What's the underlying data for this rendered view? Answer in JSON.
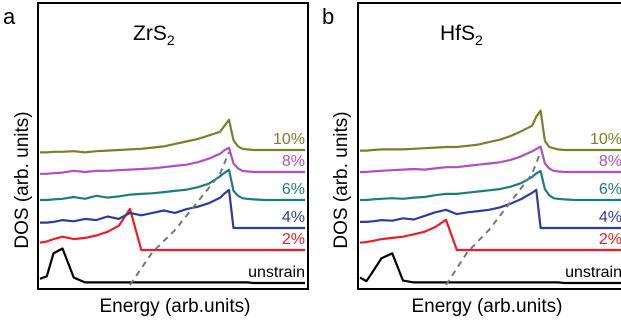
{
  "colors": {
    "unstrain": "#000000",
    "2%": "#ee1c25",
    "4%": "#2e3c9e",
    "6%": "#1a7f7a",
    "8%": "#b04fbf",
    "10%": "#7a7f2a",
    "guide": "#777777"
  },
  "chart_data": [
    {
      "panel": "a",
      "title_base": "ZrS",
      "title_sub": "2",
      "type": "line",
      "xlabel": "Energy (arb.units)",
      "ylabel": "DOS (arb. units)",
      "x": [
        0,
        0.03,
        0.06,
        0.1,
        0.15,
        0.2,
        0.25,
        0.3,
        0.35,
        0.4,
        0.45,
        0.5,
        0.55,
        0.6,
        0.65,
        0.7,
        0.75,
        0.8,
        0.82,
        0.84,
        0.86,
        0.88,
        0.9,
        0.92,
        0.95,
        1.0
      ],
      "series": [
        {
          "name": "unstrain",
          "color_key": "unstrain",
          "values": [
            0.08,
            0.12,
            0.5,
            0.58,
            0.1,
            0.02,
            0.02,
            0.02,
            0.02,
            0.02,
            0.02,
            0.02,
            0.02,
            0.02,
            0.02,
            0.02,
            0.02,
            0.02,
            0.02,
            0.02,
            0.02,
            0.02,
            0.02,
            0.02,
            0.01,
            0.01
          ]
        },
        {
          "name": "2%",
          "color_key": "2%",
          "values": [
            0.22,
            0.24,
            0.28,
            0.32,
            0.28,
            0.3,
            0.34,
            0.4,
            0.5,
            0.78,
            0.1,
            0.1,
            0.1,
            0.1,
            0.1,
            0.1,
            0.1,
            0.1,
            0.1,
            0.1,
            0.1,
            0.1,
            0.1,
            0.1,
            0.1,
            0.1
          ]
        },
        {
          "name": "4%",
          "color_key": "4%",
          "values": [
            0.34,
            0.34,
            0.35,
            0.38,
            0.36,
            0.4,
            0.38,
            0.44,
            0.4,
            0.5,
            0.46,
            0.5,
            0.54,
            0.5,
            0.56,
            0.6,
            0.66,
            0.75,
            0.82,
            0.88,
            0.25,
            0.25,
            0.25,
            0.25,
            0.25,
            0.25
          ]
        },
        {
          "name": "6%",
          "color_key": "6%",
          "values": [
            0.45,
            0.45,
            0.46,
            0.47,
            0.5,
            0.47,
            0.52,
            0.49,
            0.51,
            0.54,
            0.55,
            0.56,
            0.58,
            0.6,
            0.62,
            0.66,
            0.72,
            0.84,
            0.9,
            0.95,
            0.6,
            0.52,
            0.48,
            0.47,
            0.46,
            0.45
          ]
        },
        {
          "name": "8%",
          "color_key": "8%",
          "values": [
            0.55,
            0.55,
            0.56,
            0.57,
            0.6,
            0.58,
            0.6,
            0.6,
            0.61,
            0.62,
            0.63,
            0.64,
            0.66,
            0.68,
            0.7,
            0.74,
            0.8,
            0.88,
            0.94,
            0.98,
            0.72,
            0.64,
            0.6,
            0.59,
            0.58,
            0.58
          ]
        },
        {
          "name": "10%",
          "color_key": "10%",
          "values": [
            0.66,
            0.66,
            0.67,
            0.67,
            0.68,
            0.66,
            0.68,
            0.69,
            0.7,
            0.71,
            0.72,
            0.74,
            0.76,
            0.8,
            0.84,
            0.88,
            0.94,
            1.0,
            1.1,
            1.2,
            0.86,
            0.76,
            0.72,
            0.71,
            0.7,
            0.7
          ]
        }
      ],
      "legend_labels": [
        "10%",
        "8%",
        "6%",
        "4%",
        "2%",
        "unstrain"
      ]
    },
    {
      "panel": "b",
      "title_base": "HfS",
      "title_sub": "2",
      "type": "line",
      "xlabel": "Energy (arb.units)",
      "ylabel": "DOS (arb. units)",
      "x": [
        0,
        0.03,
        0.06,
        0.1,
        0.15,
        0.2,
        0.25,
        0.3,
        0.35,
        0.4,
        0.45,
        0.5,
        0.55,
        0.6,
        0.65,
        0.7,
        0.75,
        0.8,
        0.82,
        0.84,
        0.86,
        0.88,
        0.9,
        0.92,
        0.95,
        1.0
      ],
      "series": [
        {
          "name": "unstrain",
          "color_key": "unstrain",
          "values": [
            0.1,
            0.04,
            0.2,
            0.42,
            0.5,
            0.05,
            0.02,
            0.02,
            0.02,
            0.02,
            0.02,
            0.02,
            0.02,
            0.02,
            0.02,
            0.02,
            0.02,
            0.02,
            0.02,
            0.02,
            0.02,
            0.02,
            0.02,
            0.02,
            0.01,
            0.01
          ]
        },
        {
          "name": "2%",
          "color_key": "2%",
          "values": [
            0.22,
            0.23,
            0.25,
            0.28,
            0.3,
            0.32,
            0.36,
            0.4,
            0.48,
            0.6,
            0.1,
            0.1,
            0.1,
            0.1,
            0.1,
            0.1,
            0.1,
            0.1,
            0.1,
            0.1,
            0.1,
            0.1,
            0.1,
            0.1,
            0.1,
            0.1
          ]
        },
        {
          "name": "4%",
          "color_key": "4%",
          "values": [
            0.32,
            0.32,
            0.33,
            0.35,
            0.34,
            0.38,
            0.36,
            0.42,
            0.48,
            0.52,
            0.45,
            0.48,
            0.5,
            0.52,
            0.56,
            0.62,
            0.7,
            0.8,
            0.85,
            0.22,
            0.22,
            0.22,
            0.22,
            0.22,
            0.22,
            0.22
          ]
        },
        {
          "name": "6%",
          "color_key": "6%",
          "values": [
            0.42,
            0.42,
            0.43,
            0.44,
            0.45,
            0.44,
            0.46,
            0.47,
            0.5,
            0.52,
            0.52,
            0.54,
            0.56,
            0.58,
            0.6,
            0.64,
            0.7,
            0.8,
            0.86,
            0.9,
            0.6,
            0.5,
            0.45,
            0.44,
            0.43,
            0.42
          ]
        },
        {
          "name": "8%",
          "color_key": "8%",
          "values": [
            0.52,
            0.52,
            0.53,
            0.54,
            0.55,
            0.56,
            0.57,
            0.56,
            0.58,
            0.6,
            0.6,
            0.62,
            0.64,
            0.66,
            0.68,
            0.72,
            0.78,
            0.86,
            0.9,
            0.94,
            0.66,
            0.58,
            0.54,
            0.53,
            0.52,
            0.52
          ]
        },
        {
          "name": "10%",
          "color_key": "10%",
          "values": [
            0.64,
            0.64,
            0.65,
            0.66,
            0.66,
            0.66,
            0.67,
            0.68,
            0.69,
            0.7,
            0.7,
            0.72,
            0.74,
            0.78,
            0.82,
            0.88,
            0.96,
            1.05,
            1.2,
            1.3,
            0.8,
            0.7,
            0.68,
            0.66,
            0.65,
            0.65
          ]
        }
      ],
      "legend_labels": [
        "10%",
        "8%",
        "6%",
        "4%",
        "2%",
        "unstrain"
      ]
    }
  ]
}
